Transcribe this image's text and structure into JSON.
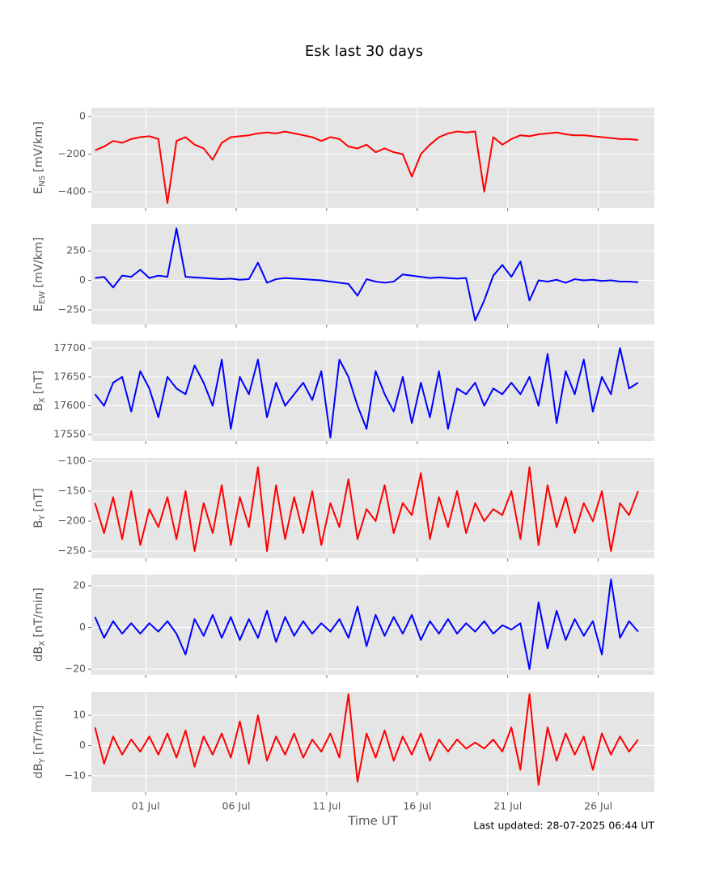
{
  "chart_data": {
    "type": "line",
    "title": "Esk last 30 days",
    "xlabel": "Time UT",
    "annotation": "Last updated: 28-07-2025 06:44 UT",
    "x": [
      -1.8,
      -1.3,
      -0.8,
      -0.3,
      0.2,
      0.7,
      1.2,
      1.7,
      2.2,
      2.7,
      3.2,
      3.7,
      4.2,
      4.7,
      5.2,
      5.7,
      6.2,
      6.7,
      7.2,
      7.7,
      8.2,
      8.7,
      9.2,
      9.7,
      10.2,
      10.7,
      11.2,
      11.7,
      12.2,
      12.7,
      13.2,
      13.7,
      14.2,
      14.7,
      15.2,
      15.7,
      16.2,
      16.7,
      17.2,
      17.7,
      18.2,
      18.7,
      19.2,
      19.7,
      20.2,
      20.7,
      21.2,
      21.7,
      22.2,
      22.7,
      23.2,
      23.7,
      24.2,
      24.7,
      25.2,
      25.7,
      26.2,
      26.7,
      27.2,
      27.7,
      28.2
    ],
    "xlim": [
      -2.0,
      29.1
    ],
    "xticks": [
      {
        "value": 1,
        "label": "01 Jul"
      },
      {
        "value": 6,
        "label": "06 Jul"
      },
      {
        "value": 11,
        "label": "11 Jul"
      },
      {
        "value": 16,
        "label": "16 Jul"
      },
      {
        "value": 21,
        "label": "21 Jul"
      },
      {
        "value": 26,
        "label": "26 Jul"
      }
    ],
    "grid": true,
    "panels": [
      {
        "ylabel": [
          "E",
          "NS",
          "[mV/km]"
        ],
        "ylim": [
          -486,
          47
        ],
        "yticks": [
          0,
          {
            "value": -200,
            "label": "−200"
          },
          {
            "value": -400,
            "label": "−400"
          }
        ],
        "series": [
          {
            "color": "#ff0000",
            "values": [
              -180,
              -160,
              -130,
              -140,
              -120,
              -110,
              -105,
              -120,
              -460,
              -130,
              -110,
              -150,
              -170,
              -230,
              -140,
              -110,
              -105,
              -100,
              -90,
              -85,
              -90,
              -80,
              -90,
              -100,
              -110,
              -130,
              -110,
              -120,
              -160,
              -170,
              -150,
              -190,
              -170,
              -190,
              -200,
              -320,
              -200,
              -150,
              -110,
              -90,
              -80,
              -85,
              -80,
              -400,
              -110,
              -150,
              -120,
              -100,
              -105,
              -95,
              -90,
              -85,
              -95,
              -100,
              -100,
              -105,
              -110,
              -115,
              -120,
              -120,
              -125
            ]
          }
        ]
      },
      {
        "ylabel": [
          "E",
          "EW",
          "[mV/km]"
        ],
        "ylim": [
          -373,
          476
        ],
        "yticks": [
          {
            "value": -250,
            "label": "−250"
          },
          0,
          250
        ],
        "series": [
          {
            "color": "#0000ff",
            "values": [
              20,
              30,
              -60,
              40,
              30,
              90,
              20,
              40,
              30,
              440,
              30,
              25,
              20,
              15,
              10,
              15,
              5,
              10,
              150,
              -20,
              10,
              20,
              15,
              10,
              5,
              0,
              -10,
              -20,
              -30,
              -130,
              10,
              -10,
              -20,
              -10,
              50,
              40,
              30,
              20,
              25,
              20,
              15,
              20,
              -340,
              -170,
              40,
              130,
              30,
              160,
              -170,
              0,
              -10,
              5,
              -20,
              10,
              0,
              5,
              -5,
              0,
              -10,
              -10,
              -15
            ]
          }
        ]
      },
      {
        "ylabel": [
          "B",
          "X",
          "[nT]"
        ],
        "ylim": [
          17539,
          17713
        ],
        "yticks": [
          17550,
          17600,
          17650,
          17700
        ],
        "series": [
          {
            "color": "#0000ff",
            "values": [
              17620,
              17600,
              17640,
              17650,
              17590,
              17660,
              17630,
              17580,
              17650,
              17630,
              17620,
              17670,
              17640,
              17600,
              17680,
              17560,
              17650,
              17620,
              17680,
              17580,
              17640,
              17600,
              17620,
              17640,
              17610,
              17660,
              17545,
              17680,
              17650,
              17600,
              17560,
              17660,
              17620,
              17590,
              17650,
              17570,
              17640,
              17580,
              17660,
              17560,
              17630,
              17620,
              17640,
              17600,
              17630,
              17620,
              17640,
              17620,
              17650,
              17600,
              17690,
              17570,
              17660,
              17620,
              17680,
              17590,
              17650,
              17620,
              17700,
              17630,
              17640
            ]
          }
        ]
      },
      {
        "ylabel": [
          "B",
          "Y",
          "[nT]"
        ],
        "ylim": [
          -262,
          -94.6
        ],
        "yticks": [
          {
            "value": -250,
            "label": "−250"
          },
          {
            "value": -200,
            "label": "−200"
          },
          {
            "value": -150,
            "label": "−150"
          },
          {
            "value": -100,
            "label": "−100"
          }
        ],
        "series": [
          {
            "color": "#ff0000",
            "values": [
              -170,
              -220,
              -160,
              -230,
              -150,
              -240,
              -180,
              -210,
              -160,
              -230,
              -150,
              -250,
              -170,
              -220,
              -140,
              -240,
              -160,
              -210,
              -110,
              -250,
              -140,
              -230,
              -160,
              -220,
              -150,
              -240,
              -170,
              -210,
              -130,
              -230,
              -180,
              -200,
              -140,
              -220,
              -170,
              -190,
              -120,
              -230,
              -160,
              -210,
              -150,
              -220,
              -170,
              -200,
              -180,
              -190,
              -150,
              -230,
              -110,
              -240,
              -140,
              -210,
              -160,
              -220,
              -170,
              -200,
              -150,
              -250,
              -170,
              -190,
              -150
            ]
          }
        ]
      },
      {
        "ylabel": [
          "dB",
          "X",
          "[nT/min]"
        ],
        "ylim": [
          -22.7,
          25.4
        ],
        "yticks": [
          {
            "value": -20,
            "label": "−20"
          },
          0,
          20
        ],
        "series": [
          {
            "color": "#0000ff",
            "values": [
              5,
              -5,
              3,
              -3,
              2,
              -3,
              2,
              -2,
              3,
              -3,
              -13,
              4,
              -4,
              6,
              -5,
              5,
              -6,
              4,
              -5,
              8,
              -7,
              5,
              -4,
              3,
              -3,
              2,
              -2,
              4,
              -5,
              10,
              -9,
              6,
              -4,
              5,
              -3,
              6,
              -6,
              3,
              -3,
              4,
              -3,
              2,
              -2,
              3,
              -3,
              1,
              -1,
              2,
              -20,
              12,
              -10,
              8,
              -6,
              4,
              -4,
              3,
              -13,
              23,
              -5,
              3,
              -2
            ]
          }
        ]
      },
      {
        "ylabel": [
          "dB",
          "Y",
          "[nT/min]"
        ],
        "ylim": [
          -15.4,
          17.8
        ],
        "yticks": [
          {
            "value": -10,
            "label": "−10"
          },
          0,
          10
        ],
        "series": [
          {
            "color": "#ff0000",
            "values": [
              6,
              -6,
              3,
              -3,
              2,
              -2,
              3,
              -3,
              4,
              -4,
              5,
              -7,
              3,
              -3,
              4,
              -4,
              8,
              -6,
              10,
              -5,
              3,
              -3,
              4,
              -4,
              2,
              -2,
              4,
              -4,
              17,
              -12,
              4,
              -4,
              5,
              -5,
              3,
              -3,
              4,
              -5,
              2,
              -2,
              2,
              -1,
              1,
              -1,
              2,
              -2,
              6,
              -8,
              17,
              -13,
              6,
              -5,
              4,
              -3,
              3,
              -8,
              4,
              -3,
              3,
              -2,
              2
            ]
          }
        ]
      }
    ]
  }
}
